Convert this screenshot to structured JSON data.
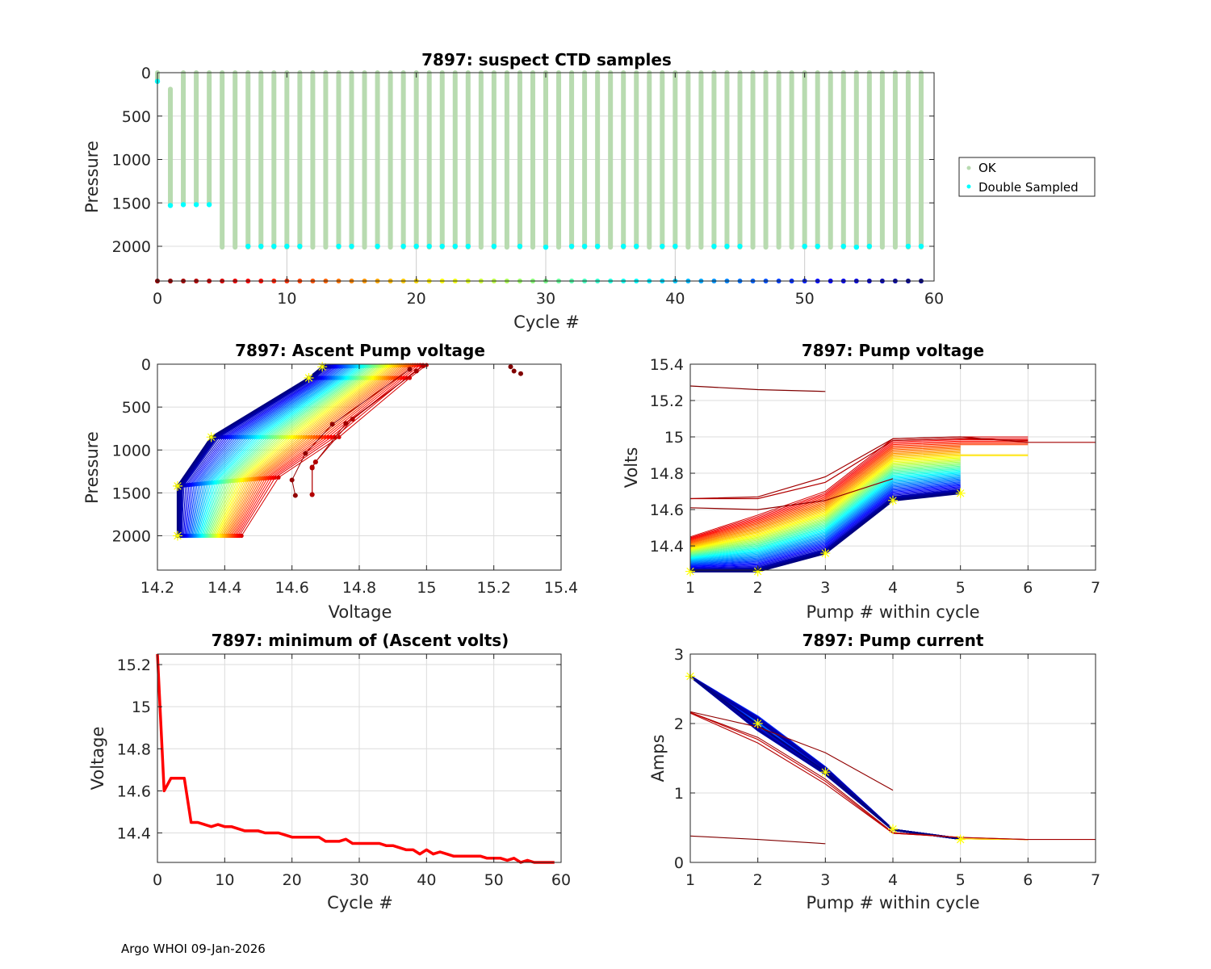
{
  "figure": {
    "footer": "Argo WHOI 09-Jan-2026",
    "float_id": "7897"
  },
  "chart_data": [
    {
      "id": "ctd",
      "type": "scatter",
      "title": "7897: suspect CTD samples",
      "xlabel": "Cycle #",
      "ylabel": "Pressure",
      "xlim": [
        0,
        60
      ],
      "ylim": [
        0,
        2400
      ],
      "y_reversed": true,
      "xticks": [
        0,
        10,
        20,
        30,
        40,
        50,
        60
      ],
      "yticks": [
        0,
        500,
        1000,
        1500,
        2000
      ],
      "grid": true,
      "legend": {
        "placement": "outside-right",
        "entries": [
          {
            "label": "OK",
            "color": "#b8dbb0"
          },
          {
            "label": "Double Sampled",
            "color": "#00ffff"
          }
        ]
      },
      "ok_profiles": {
        "cycles": [
          0,
          1,
          2,
          3,
          4,
          5,
          6,
          7,
          8,
          9,
          10,
          11,
          12,
          13,
          14,
          15,
          16,
          17,
          18,
          19,
          20,
          21,
          22,
          23,
          24,
          25,
          26,
          27,
          28,
          29,
          30,
          31,
          32,
          33,
          34,
          35,
          36,
          37,
          38,
          39,
          40,
          41,
          42,
          43,
          44,
          45,
          46,
          47,
          48,
          49,
          50,
          51,
          52,
          53,
          54,
          55,
          56,
          57,
          58,
          59
        ],
        "top_pressure": [
          0,
          190,
          0,
          0,
          0,
          0,
          0,
          0,
          0,
          0,
          0,
          0,
          0,
          0,
          0,
          0,
          0,
          0,
          0,
          0,
          0,
          0,
          0,
          0,
          0,
          0,
          0,
          0,
          0,
          0,
          0,
          0,
          0,
          0,
          0,
          0,
          0,
          0,
          0,
          0,
          0,
          0,
          0,
          0,
          0,
          0,
          0,
          0,
          0,
          0,
          0,
          0,
          0,
          0,
          0,
          0,
          0,
          0,
          0,
          0
        ],
        "bottom_pressure": [
          100,
          1530,
          1520,
          1520,
          1520,
          2010,
          2010,
          2010,
          2010,
          2010,
          2010,
          2010,
          2010,
          2010,
          2010,
          2010,
          2010,
          2010,
          2010,
          2010,
          2010,
          2010,
          2010,
          2010,
          2010,
          2010,
          2010,
          2010,
          2010,
          2010,
          2010,
          2010,
          2010,
          2010,
          2010,
          2010,
          2010,
          2010,
          2010,
          2010,
          2010,
          2010,
          2010,
          2010,
          2010,
          2010,
          2010,
          2010,
          2010,
          2010,
          2010,
          2010,
          2010,
          2010,
          2010,
          2010,
          2010,
          2010,
          2010,
          2010
        ]
      },
      "double_sampled": {
        "cycles": [
          0,
          1,
          2,
          3,
          4,
          7,
          8,
          9,
          10,
          11,
          14,
          15,
          17,
          19,
          20,
          21,
          22,
          23,
          24,
          26,
          28,
          30,
          32,
          33,
          34,
          36,
          37,
          39,
          40,
          43,
          44,
          45,
          50,
          51,
          53,
          54,
          55,
          58,
          59
        ],
        "pressure": [
          100,
          1530,
          1520,
          1520,
          1520,
          2000,
          2000,
          2000,
          2000,
          2000,
          2000,
          2000,
          2000,
          2000,
          2000,
          2000,
          2000,
          2000,
          2000,
          2000,
          2000,
          2010,
          2000,
          2000,
          2000,
          2000,
          2000,
          2000,
          2000,
          2000,
          2000,
          2000,
          2000,
          2000,
          2000,
          2010,
          2000,
          2000,
          2000
        ]
      },
      "cycle_markers": {
        "cycles_from": 0,
        "cycles_to": 59,
        "colormap": "jet-reversed",
        "pressure": 2400
      },
      "stem_cycles": [
        10,
        20,
        30,
        40,
        50
      ]
    },
    {
      "id": "ascent",
      "type": "line",
      "title": "7897: Ascent Pump voltage",
      "xlabel": "Voltage",
      "ylabel": "Pressure",
      "xlim": [
        14.2,
        15.4
      ],
      "ylim": [
        0,
        2400
      ],
      "y_reversed": true,
      "xticks": [
        14.2,
        14.4,
        14.6,
        14.8,
        15,
        15.2,
        15.4
      ],
      "xtick_labels": [
        "14.2",
        "14.4",
        "14.6",
        "14.8",
        "15",
        "15.2",
        "15.4"
      ],
      "yticks": [
        0,
        500,
        1000,
        1500,
        2000
      ],
      "grid": true,
      "colormap": "jet-reversed-by-cycle",
      "series_first": {
        "cycle": 5,
        "points": [
          [
            14.45,
            2000
          ],
          [
            14.56,
            1320
          ],
          [
            14.74,
            850
          ],
          [
            14.95,
            160
          ],
          [
            15.0,
            10
          ]
        ]
      },
      "series_last": {
        "cycle": 59,
        "points": [
          [
            14.26,
            2000
          ],
          [
            14.26,
            1420
          ],
          [
            14.36,
            850
          ],
          [
            14.65,
            160
          ],
          [
            14.69,
            30
          ]
        ]
      },
      "early_cycles": [
        {
          "cycle": 1,
          "points": [
            [
              14.61,
              1530
            ],
            [
              14.6,
              1350
            ],
            [
              14.64,
              1040
            ],
            [
              14.72,
              700
            ],
            [
              14.95,
              60
            ]
          ]
        },
        {
          "cycle": 2,
          "points": [
            [
              14.66,
              1520
            ],
            [
              14.66,
              1210
            ],
            [
              14.67,
              1140
            ],
            [
              14.76,
              690
            ],
            [
              14.97,
              80
            ]
          ]
        },
        {
          "cycle": 3,
          "points": [
            [
              14.66,
              1520
            ],
            [
              14.66,
              1200
            ],
            [
              14.67,
              1140
            ],
            [
              14.78,
              640
            ],
            [
              14.99,
              20
            ]
          ]
        },
        {
          "cycle": 0,
          "points": [
            [
              15.25,
              30
            ],
            [
              15.26,
              80
            ],
            [
              15.28,
              110
            ]
          ]
        }
      ],
      "highlight_markers": [
        [
          14.26,
          2000
        ],
        [
          14.26,
          1420
        ],
        [
          14.36,
          850
        ],
        [
          14.65,
          160
        ],
        [
          14.69,
          30
        ]
      ]
    },
    {
      "id": "pumpvolt",
      "type": "line",
      "title": "7897: Pump voltage",
      "xlabel": "Pump # within cycle",
      "ylabel": "Volts",
      "xlim": [
        1,
        7
      ],
      "ylim": [
        14.267,
        15.4
      ],
      "xticks": [
        1,
        2,
        3,
        4,
        5,
        6,
        7
      ],
      "yticks": [
        14.4,
        14.6,
        14.8,
        15,
        15.2,
        15.4
      ],
      "ytick_labels": [
        "14.4",
        "14.6",
        "14.8",
        "15",
        "15.2",
        "15.4"
      ],
      "grid": true,
      "colormap": "jet-reversed-by-cycle",
      "series_first": {
        "cycle": 5,
        "values": [
          14.45,
          14.57,
          14.7,
          14.99,
          15.0,
          15.0
        ]
      },
      "series_last": {
        "cycle": 59,
        "values": [
          14.26,
          14.26,
          14.36,
          14.65,
          14.69
        ]
      },
      "outliers": [
        {
          "cycle": 0,
          "values": [
            15.28,
            15.26,
            15.25
          ]
        },
        {
          "cycle": 1,
          "values": [
            14.61,
            14.6,
            14.65,
            14.77
          ]
        },
        {
          "cycle": 2,
          "values": [
            14.66,
            14.67,
            14.78,
            14.99,
            15.0,
            14.97,
            14.97
          ]
        },
        {
          "cycle": 3,
          "values": [
            14.66,
            14.66,
            14.75,
            14.98,
            14.99,
            14.98
          ]
        }
      ],
      "highlight_markers": [
        [
          1,
          14.26
        ],
        [
          2,
          14.26
        ],
        [
          3,
          14.36
        ],
        [
          4,
          14.65
        ],
        [
          5,
          14.69
        ]
      ]
    },
    {
      "id": "minvolt",
      "type": "line",
      "title": "7897: minimum of (Ascent volts)",
      "xlabel": "Cycle #",
      "ylabel": "Voltage",
      "xlim": [
        0,
        60
      ],
      "ylim": [
        14.26,
        15.25
      ],
      "xticks": [
        0,
        10,
        20,
        30,
        40,
        50,
        60
      ],
      "yticks": [
        14.4,
        14.6,
        14.8,
        15,
        15.2
      ],
      "ytick_labels": [
        "14.4",
        "14.6",
        "14.8",
        "15",
        "15.2"
      ],
      "grid": true,
      "color": "#ff0000",
      "x": [
        0,
        1,
        2,
        3,
        4,
        5,
        6,
        7,
        8,
        9,
        10,
        11,
        12,
        13,
        14,
        15,
        16,
        17,
        18,
        19,
        20,
        21,
        22,
        23,
        24,
        25,
        26,
        27,
        28,
        29,
        30,
        31,
        32,
        33,
        34,
        35,
        36,
        37,
        38,
        39,
        40,
        41,
        42,
        43,
        44,
        45,
        46,
        47,
        48,
        49,
        50,
        51,
        52,
        53,
        54,
        55,
        56,
        57,
        58,
        59
      ],
      "y": [
        15.25,
        14.6,
        14.66,
        14.66,
        14.66,
        14.45,
        14.45,
        14.44,
        14.43,
        14.44,
        14.43,
        14.43,
        14.42,
        14.41,
        14.41,
        14.41,
        14.4,
        14.4,
        14.4,
        14.39,
        14.38,
        14.38,
        14.38,
        14.38,
        14.38,
        14.36,
        14.36,
        14.36,
        14.37,
        14.35,
        14.35,
        14.35,
        14.35,
        14.35,
        14.34,
        14.34,
        14.33,
        14.32,
        14.32,
        14.3,
        14.32,
        14.3,
        14.31,
        14.3,
        14.29,
        14.29,
        14.29,
        14.29,
        14.29,
        14.28,
        14.28,
        14.28,
        14.27,
        14.28,
        14.26,
        14.27,
        14.26,
        14.26,
        14.26,
        14.26
      ]
    },
    {
      "id": "pumpcurrent",
      "type": "line",
      "title": "7897: Pump current",
      "xlabel": "Pump # within cycle",
      "ylabel": "Amps",
      "xlim": [
        1,
        7
      ],
      "ylim": [
        0,
        3
      ],
      "xticks": [
        1,
        2,
        3,
        4,
        5,
        6,
        7
      ],
      "yticks": [
        0,
        1,
        2,
        3
      ],
      "grid": true,
      "colormap": "jet-reversed-by-cycle",
      "bundle": {
        "values": [
          2.68,
          2.0,
          1.32,
          0.47,
          0.34,
          0.33
        ]
      },
      "outliers": [
        {
          "cycle": 0,
          "values": [
            0.38,
            0.33,
            0.27
          ]
        },
        {
          "cycle": 1,
          "values": [
            2.17,
            1.95,
            1.58,
            1.04
          ]
        },
        {
          "cycle": 2,
          "values": [
            2.16,
            1.8,
            1.2,
            0.43,
            0.36,
            0.33,
            0.33
          ]
        },
        {
          "cycle": 3,
          "values": [
            2.15,
            1.72,
            1.13,
            0.42,
            0.36,
            0.33
          ]
        },
        {
          "cycle": 4,
          "values": [
            2.16,
            1.77,
            1.17,
            0.42,
            0.36
          ]
        }
      ],
      "highlight_markers": [
        [
          1,
          2.68
        ],
        [
          2,
          2.0
        ],
        [
          3,
          1.3
        ],
        [
          4,
          0.48
        ],
        [
          5,
          0.33
        ]
      ]
    }
  ]
}
